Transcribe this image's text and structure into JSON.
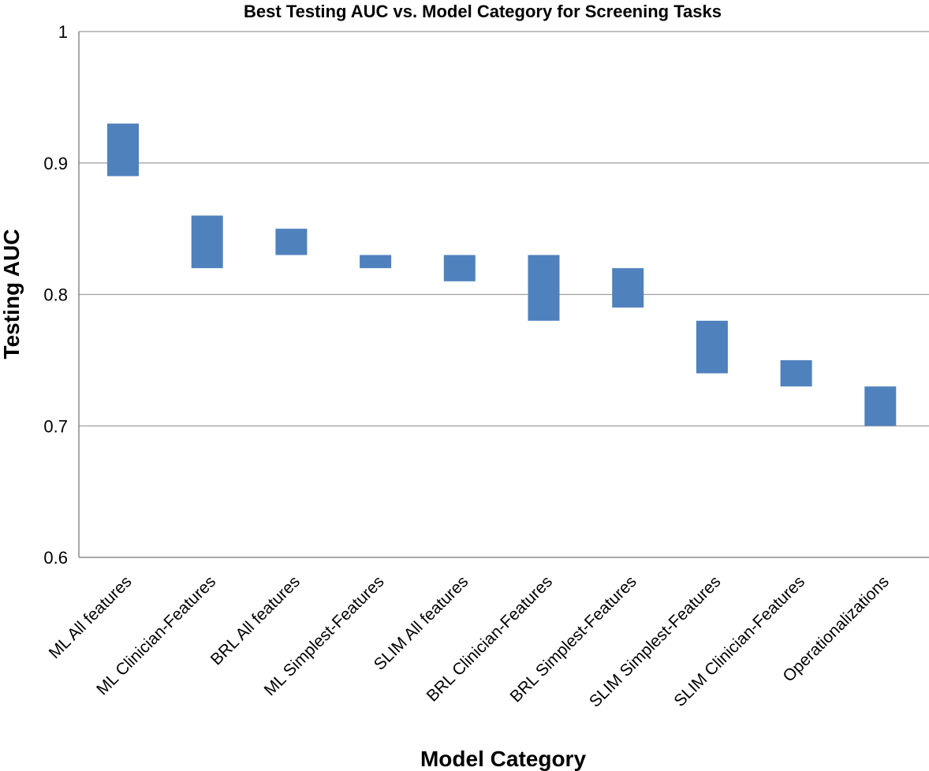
{
  "chart_data": {
    "type": "bar",
    "subtype": "floating-range",
    "title": "Best Testing AUC vs. Model Category for Screening Tasks",
    "xlabel": "Model Category",
    "ylabel": "Testing AUC",
    "ylim": [
      0.6,
      1
    ],
    "yticks": [
      "0.6",
      "0.7",
      "0.8",
      "0.9",
      "1"
    ],
    "grid": true,
    "legend": "none",
    "bar_color": "#4f81bd",
    "categories": [
      "ML All features",
      "ML Clinician-Features",
      "BRL All features",
      "ML Simplest-Features",
      "SLIM All features",
      "BRL Clinician-Features",
      "BRL Simplest-Features",
      "SLIM Simplest-Features",
      "SLIM Clinician-Features",
      "Operationalizations"
    ],
    "low": [
      0.89,
      0.82,
      0.83,
      0.82,
      0.81,
      0.78,
      0.79,
      0.74,
      0.73,
      0.7
    ],
    "high": [
      0.93,
      0.86,
      0.85,
      0.83,
      0.83,
      0.83,
      0.82,
      0.78,
      0.75,
      0.73
    ]
  }
}
